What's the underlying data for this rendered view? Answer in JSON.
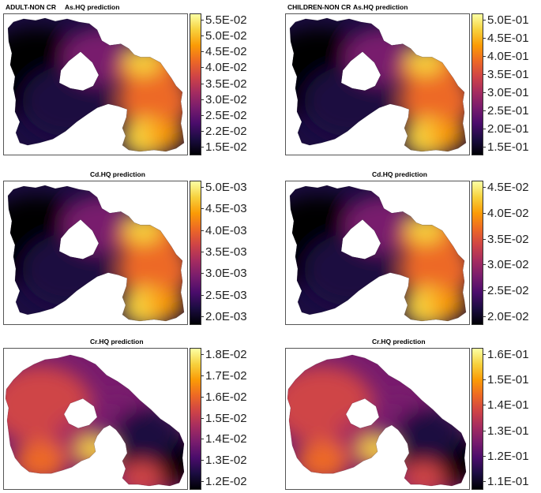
{
  "colors": {
    "palette": [
      "#000004",
      "#1b0c41",
      "#4a0c6b",
      "#781c6d",
      "#a52c60",
      "#cf4446",
      "#ed6925",
      "#fb9b06",
      "#f7d13d",
      "#fcffa4"
    ],
    "frame": "#555555"
  },
  "panels": [
    {
      "label": "ADULT-NON CR",
      "title": "As.HQ prediction",
      "shape": "A",
      "field": "east_high",
      "legend": [
        "5.5E-02",
        "5.0E-02",
        "4.5E-02",
        "4.0E-02",
        "3.5E-02",
        "3.0E-02",
        "2.5E-02",
        "2.2E-02",
        "1.5E-02"
      ]
    },
    {
      "label": "CHILDREN-NON  CR",
      "title": "As.HQ prediction",
      "shape": "A",
      "field": "east_high",
      "legend": [
        "5.0E-01",
        "4.5E-01",
        "4.0E-01",
        "3.5E-01",
        "3.0E-01",
        "2.5E-01",
        "2.0E-01",
        "1.5E-01"
      ]
    },
    {
      "label": "",
      "title": "Cd.HQ prediction",
      "shape": "A",
      "field": "east_high",
      "legend": [
        "5.0E-03",
        "4.5E-03",
        "4.0E-03",
        "3.5E-03",
        "3.0E-03",
        "2.5E-03",
        "2.0E-03"
      ]
    },
    {
      "label": "",
      "title": "Cd.HQ prediction",
      "shape": "A",
      "field": "east_high",
      "legend": [
        "4.5E-02",
        "4.0E-02",
        "3.5E-02",
        "3.0E-02",
        "2.5E-02",
        "2.0E-02"
      ]
    },
    {
      "label": "",
      "title": "Cr.HQ prediction",
      "shape": "B",
      "field": "west_high",
      "legend": [
        "1.8E-02",
        "1.7E-02",
        "1.6E-02",
        "1.5E-02",
        "1.4E-02",
        "1.3E-02",
        "1.2E-02"
      ]
    },
    {
      "label": "",
      "title": "Cr.HQ prediction",
      "shape": "B",
      "field": "west_high",
      "legend": [
        "1.6E-01",
        "1.5E-01",
        "1.4E-01",
        "1.3E-01",
        "1.2E-01",
        "1.1E-01"
      ]
    }
  ]
}
